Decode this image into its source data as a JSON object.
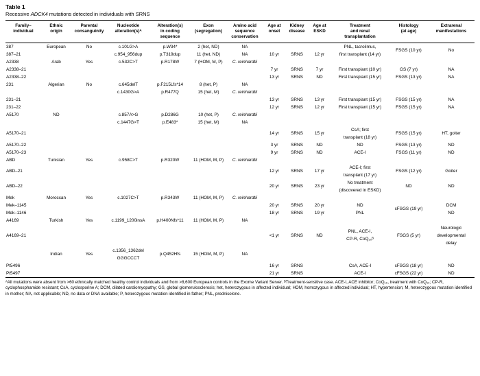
{
  "title": "Table 1",
  "subtitle_parts": [
    {
      "t": "Recessive "
    },
    {
      "t": "ADCK4",
      "i": true
    },
    {
      "t": " mutations detected in individuals with SRNS"
    }
  ],
  "columns": [
    {
      "label": "Family–\nindividual"
    },
    {
      "label": "Ethnic\norigin"
    },
    {
      "label": "Parental\nconsanguinity"
    },
    {
      "label": "Nucleotide\nalteration(s)ᴬ"
    },
    {
      "label": "Alteration(s)\nin coding\nsequence"
    },
    {
      "label": "Exon\n(segregation)"
    },
    {
      "label": "Amino acid\nsequence\nconservation"
    },
    {
      "label": "Age at\nonset"
    },
    {
      "label": "Kidney\ndisease"
    },
    {
      "label": "Age at\nESKD"
    },
    {
      "label": "Treatment\nand renal\ntransplantation"
    },
    {
      "label": "Histology\n(at age)"
    },
    {
      "label": "Extrarenal\nmanifestations"
    }
  ],
  "rows": [
    [
      "387",
      "European",
      "No",
      "c.101G>A",
      "p.W34*",
      "2 (het, ND)",
      "NA",
      "",
      "",
      "",
      {
        "t": "PNL, tacrolimus,\nfirst transplant (14 yr)",
        "rs": 2
      },
      {
        "t": "FSGS (10 yr)",
        "rs": 2
      },
      {
        "t": "No",
        "rs": 2
      }
    ],
    [
      "387–21",
      "",
      "",
      "c.954_956dup",
      "p.T319dup",
      "11 (het, ND)",
      "NA",
      "10 yr",
      "SRNS",
      "12 yr"
    ],
    [
      "A2338",
      "Arab",
      "Yes",
      "c.532C>T",
      "p.R178W",
      "7 (HOM, M, P)",
      {
        "t": "C. reinhardtii",
        "i": true
      },
      "",
      "",
      "",
      "",
      "",
      ""
    ],
    [
      "A2338–21",
      "",
      "",
      "",
      "",
      "",
      "",
      "7 yr",
      "SRNS",
      "7 yr",
      "First transplant (10 yr)",
      "GS (7 yr)",
      "NA"
    ],
    [
      "A2338–22",
      "",
      "",
      "",
      "",
      "",
      "",
      "13 yr",
      "SRNS",
      "ND",
      "First transplant (15 yr)",
      "FSGS (13 yr)",
      "NA"
    ],
    [
      "231",
      "Algerian",
      "No",
      "c.645delT",
      "p.F215Lfs*14",
      "8 (het, P)",
      "NA",
      "",
      "",
      "",
      "",
      "",
      ""
    ],
    [
      "",
      "",
      "",
      "c.1430G>A",
      "p.R477Q",
      "15 (het, M)",
      {
        "t": "C. reinhardtii",
        "i": true
      },
      "",
      "",
      "",
      "",
      "",
      ""
    ],
    [
      "231–21",
      "",
      "",
      "",
      "",
      "",
      "",
      "13 yr",
      "SRNS",
      "13 yr",
      "First transplant (15 yr)",
      "FSGS (15 yr)",
      "NA"
    ],
    [
      "231–22",
      "",
      "",
      "",
      "",
      "",
      "",
      "12 yr",
      "SRNS",
      "12 yr",
      "First transplant (15 yr)",
      "FSGS (15 yr)",
      "NA"
    ],
    [
      "A5170",
      "ND",
      "",
      "c.857A>G",
      "p.D286G",
      "10 (het, P)",
      {
        "t": "C. reinhardtii",
        "i": true
      },
      "",
      "",
      "",
      "",
      "",
      ""
    ],
    [
      "",
      "",
      "",
      "c.1447G>T",
      "p.E483*",
      "15 (het, M)",
      "NA",
      "",
      "",
      "",
      "",
      "",
      ""
    ],
    [
      "A5170–21",
      "",
      "",
      "",
      "",
      "",
      "",
      "14 yr",
      "SRNS",
      "15 yr",
      "CsA; first\ntransplant (18 yr)",
      "FSGS (15 yr)",
      "HT, goiter"
    ],
    [
      "A5170–22",
      "",
      "",
      "",
      "",
      "",
      "",
      "3 yr",
      "SRNS",
      "ND",
      "ND",
      "FSGS (13 yr)",
      "ND"
    ],
    [
      "A5170–23",
      "",
      "",
      "",
      "",
      "",
      "",
      "9 yr",
      "SRNS",
      "ND",
      "ACE-I",
      "FSGS (11 yr)",
      "ND"
    ],
    [
      "ABD",
      "Tunisian",
      "Yes",
      "c.958C>T",
      "p.R320W",
      "11 (HOM, M, P)",
      {
        "t": "C. reinhardtii",
        "i": true
      },
      "",
      "",
      "",
      "",
      "",
      ""
    ],
    [
      "ABD–21",
      "",
      "",
      "",
      "",
      "",
      "",
      "12 yr",
      "SRNS",
      "17 yr",
      "ACE-I; first\ntransplant (17 yr)",
      "FSGS (12 yr)",
      "Goiter"
    ],
    [
      "ABD–22",
      "",
      "",
      "",
      "",
      "",
      "",
      "20 yr",
      "SRNS",
      "23 yr",
      "No treatment\n(discovered in ESKD)",
      "ND",
      "ND"
    ],
    [
      "Mek",
      "Moroccan",
      "Yes",
      "c.1027C>T",
      "p.R343W",
      "11 (HOM, M, P)",
      {
        "t": "C. reinhardtii",
        "i": true
      },
      "",
      "",
      "",
      "",
      "",
      ""
    ],
    [
      "Mek–1145",
      "",
      "",
      "",
      "",
      "",
      "",
      "20 yr",
      "SRNS",
      "20 yr",
      "ND",
      {
        "t": "cFSGS (19 yr)",
        "rs": 2
      },
      "DCM"
    ],
    [
      "Mek–1146",
      "",
      "",
      "",
      "",
      "",
      "",
      "18 yr",
      "SRNS",
      "19 yr",
      "PNL",
      "ND"
    ],
    [
      "A4169",
      "Turkish",
      "Yes",
      "c.1199_1200insA",
      "p.H400Nfs*11",
      "11 (HOM, M, P)",
      "NA",
      "",
      "",
      "",
      "",
      "",
      ""
    ],
    [
      "A4169–21",
      "",
      "",
      "",
      "",
      "",
      "",
      "<1 yr",
      "SRNS",
      "ND",
      "PNL, ACE-I,\nCP-R, CoQ₁₀ᴮ",
      "FSGS (5 yr)",
      "Neurologic\ndevelopmental\ndelay"
    ],
    [
      "",
      "Indian",
      "Yes",
      "c.1356_1362del\nGGGCCCT",
      "p.Q452Hfs",
      "15 (HOM, M, P)",
      "NA",
      "",
      "",
      "",
      "",
      "",
      ""
    ],
    [
      "Pt5496",
      "",
      "",
      "",
      "",
      "",
      "",
      "16 yr",
      "SRNS",
      "",
      "CsA, ACE-I",
      "cFSGS (18 yr)",
      "ND"
    ],
    [
      "Pt5497",
      "",
      "",
      "",
      "",
      "",
      "",
      "21 yr",
      "SRNS",
      "",
      "ACE-I",
      "cFSGS (22 yr)",
      "ND"
    ]
  ],
  "footnote": "ᴬAll mutations were absent from >60 ethnically matched healthy control individuals and from >8,600 European controls in the Exome Variant Server. ᴮTreatment-sensitive case. ACE-I, ACE inhibitor; CoQ₁₀, treatment with CoQ₁₀; CP-R, cyclophosphamide resistant; CsA, cyclosporine A; DCM, dilated cardiomyopathy; GS, global glomerulosclerosis; het, heterozygous in affected individual; HOM, homozygous in affected individual; HT, hypertension; M, heterozygous mutation identified in mother; NA, not applicable; ND, no data or DNA available; P, heterozygous mutation identified in father; PNL, prednisolone."
}
